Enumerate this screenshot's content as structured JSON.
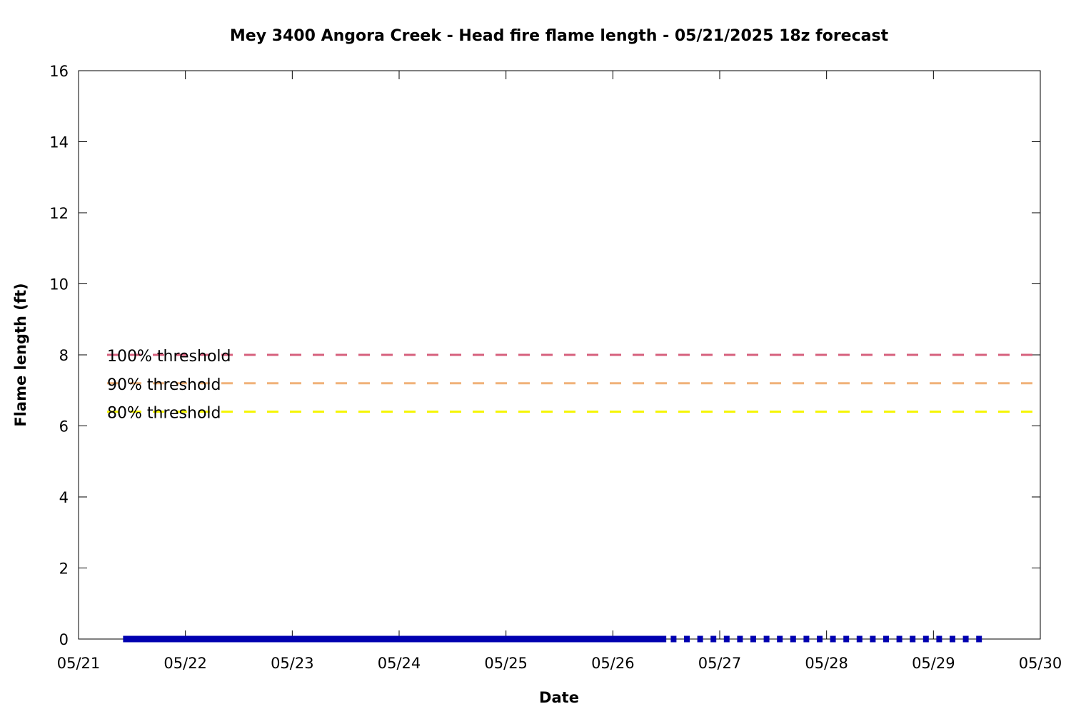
{
  "chart_data": {
    "type": "line",
    "title": "Mey 3400 Angora Creek - Head fire flame length - 05/21/2025 18z forecast",
    "xlabel": "Date",
    "ylabel": "Flame length (ft)",
    "xlim": [
      "05/21",
      "05/30"
    ],
    "ylim": [
      0,
      16
    ],
    "x_ticks": [
      "05/21",
      "05/22",
      "05/23",
      "05/24",
      "05/25",
      "05/26",
      "05/27",
      "05/28",
      "05/29",
      "05/30"
    ],
    "y_ticks": [
      0,
      2,
      4,
      6,
      8,
      10,
      12,
      14,
      16
    ],
    "grid": false,
    "thresholds": [
      {
        "name": "100% threshold",
        "value": 8.0,
        "color": "#d6607d"
      },
      {
        "name": "90% threshold",
        "value": 7.2,
        "color": "#f0b27a"
      },
      {
        "name": "80% threshold",
        "value": 6.4,
        "color": "#f5f500"
      }
    ],
    "series": [
      {
        "style": "solid",
        "color": "#0000b0",
        "x_start": "05/21 10:00",
        "x_end": "05/26 12:00",
        "value": 0
      },
      {
        "style": "dotted",
        "color": "#0000b0",
        "x_start": "05/26 13:00",
        "x_end": "05/29 12:00",
        "value": 0
      }
    ]
  }
}
